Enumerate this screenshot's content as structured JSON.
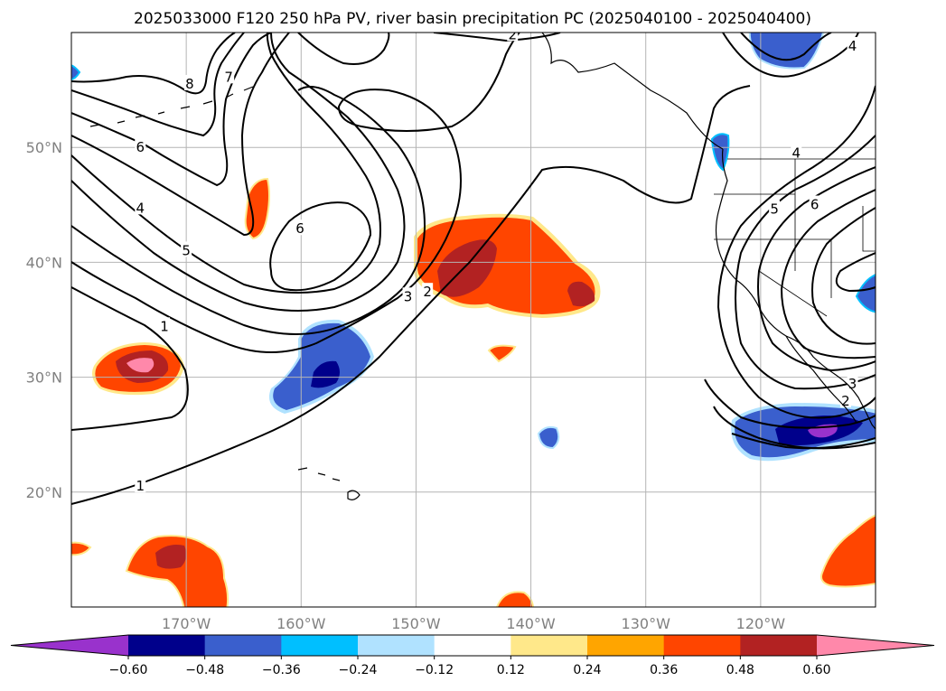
{
  "title": "2025033000 F120 250 hPa PV, river basin precipitation PC (2025040100 - 2025040400)",
  "map": {
    "lon_range": [
      -180,
      -110
    ],
    "lat_range": [
      10,
      60
    ],
    "lon_ticks": [
      {
        "value": -170,
        "label": "170°W"
      },
      {
        "value": -160,
        "label": "160°W"
      },
      {
        "value": -150,
        "label": "150°W"
      },
      {
        "value": -140,
        "label": "140°W"
      },
      {
        "value": -130,
        "label": "130°W"
      },
      {
        "value": -120,
        "label": "120°W"
      }
    ],
    "lat_ticks": [
      {
        "value": 20,
        "label": "20°N"
      },
      {
        "value": 30,
        "label": "30°N"
      },
      {
        "value": 40,
        "label": "40°N"
      },
      {
        "value": 50,
        "label": "50°N"
      }
    ],
    "grid": true,
    "contour_color": "#000000",
    "coastline_color": "#000000"
  },
  "pv_contour_labels": [
    {
      "text": "1",
      "lon": -174,
      "lat": 20.6
    },
    {
      "text": "1",
      "lon": -171.9,
      "lat": 34.5
    },
    {
      "text": "4",
      "lon": -174,
      "lat": 44.8
    },
    {
      "text": "5",
      "lon": -170,
      "lat": 41.1
    },
    {
      "text": "6",
      "lon": -174,
      "lat": 50.1
    },
    {
      "text": "6",
      "lon": -160.1,
      "lat": 43.0
    },
    {
      "text": "7",
      "lon": -166.3,
      "lat": 56.2
    },
    {
      "text": "8",
      "lon": -169.7,
      "lat": 55.6
    },
    {
      "text": "3",
      "lon": -150.7,
      "lat": 37.1
    },
    {
      "text": "2",
      "lon": -149.0,
      "lat": 37.5
    },
    {
      "text": "2",
      "lon": -141.6,
      "lat": 59.9
    },
    {
      "text": "4",
      "lon": -112.0,
      "lat": 58.9
    },
    {
      "text": "4",
      "lon": -116.9,
      "lat": 49.6
    },
    {
      "text": "5",
      "lon": -118.8,
      "lat": 44.7
    },
    {
      "text": "6",
      "lon": -115.3,
      "lat": 45.1
    },
    {
      "text": "3",
      "lon": -112.0,
      "lat": 29.5
    },
    {
      "text": "2",
      "lon": -112.6,
      "lat": 28.0
    }
  ],
  "colorbar": {
    "levels": [
      -0.6,
      -0.48,
      -0.36,
      -0.24,
      -0.12,
      0.12,
      0.24,
      0.36,
      0.48,
      0.6
    ],
    "tick_labels": [
      "−0.60",
      "−0.48",
      "−0.36",
      "−0.24",
      "−0.12",
      "0.12",
      "0.24",
      "0.36",
      "0.48",
      "0.60"
    ],
    "colors": [
      "#9932cc",
      "#00008b",
      "#3a5fcd",
      "#00bfff",
      "#b0e2ff",
      "#ffffff",
      "#ffe88a",
      "#ffa500",
      "#ff4500",
      "#b22222",
      "#ff88aa"
    ],
    "extend": "both"
  },
  "precip_regions": [
    {
      "name": "central-pacific-positive",
      "value": 0.48,
      "center_lon": -145,
      "center_lat": 39.5
    },
    {
      "name": "subtropical-negative",
      "value": -0.48,
      "center_lon": -159,
      "center_lat": 30.5
    },
    {
      "name": "west-subtropical-positive",
      "value": 0.6,
      "center_lon": -174,
      "center_lat": 30.8
    },
    {
      "name": "baja-negative",
      "value": -0.6,
      "center_lon": -116,
      "center_lat": 25.3
    },
    {
      "name": "tropical-west-positive",
      "value": 0.48,
      "center_lon": -172,
      "center_lat": 14.5
    },
    {
      "name": "tropical-east-positive",
      "value": 0.36,
      "center_lon": -112,
      "center_lat": 15
    }
  ]
}
